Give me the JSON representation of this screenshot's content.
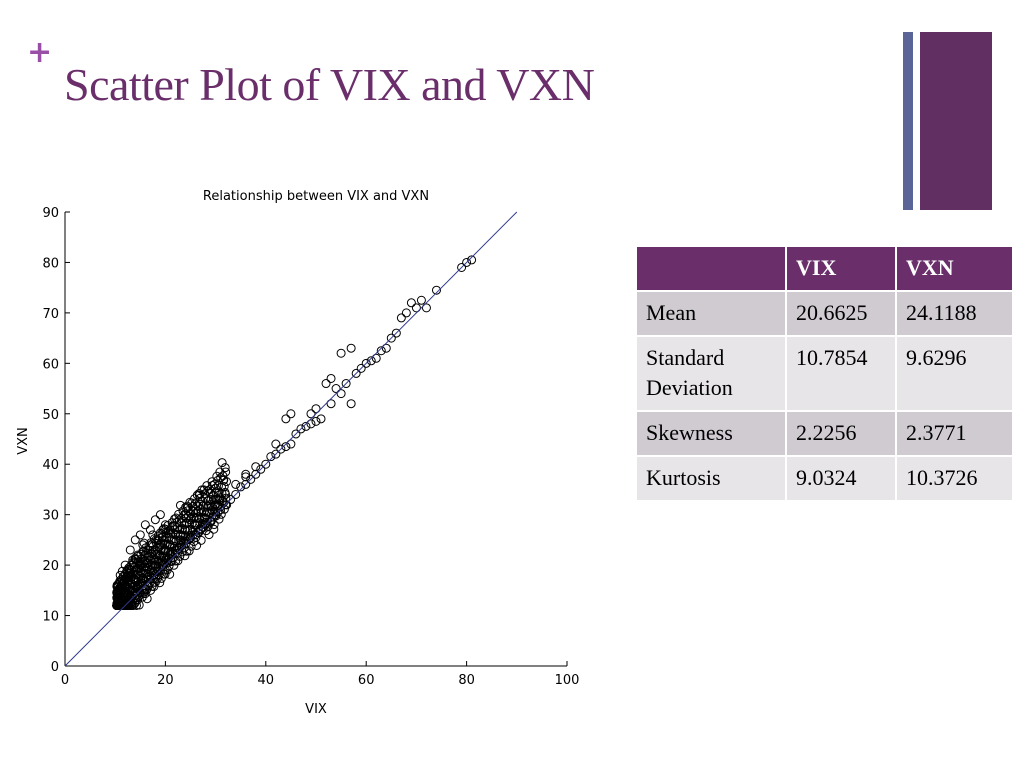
{
  "slide": {
    "bullet": "+",
    "title": "Scatter Plot of VIX and VXN",
    "accent_colors": {
      "title": "#6a2f6b",
      "plus": "#9a4fa6",
      "bar_thin": "#5b6497",
      "bar_thick": "#622f63"
    }
  },
  "stats_table": {
    "headers": [
      "",
      "VIX",
      "VXN"
    ],
    "rows": [
      [
        "Mean",
        "20.6625",
        "24.1188"
      ],
      [
        "Standard Deviation",
        "10.7854",
        "9.6296"
      ],
      [
        "Skewness",
        "2.2256",
        "2.3771"
      ],
      [
        "Kurtosis",
        "9.0324",
        "10.3726"
      ]
    ]
  },
  "chart_data": {
    "type": "scatter",
    "title": "Relationship between VIX and VXN",
    "xlabel": "VIX",
    "ylabel": "VXN",
    "xlim": [
      0,
      100
    ],
    "ylim": [
      0,
      90
    ],
    "xticks": [
      0,
      20,
      40,
      60,
      80,
      100
    ],
    "yticks": [
      0,
      10,
      20,
      30,
      40,
      50,
      60,
      70,
      80,
      90
    ],
    "marker": "open-circle",
    "grid": false,
    "fit_line": {
      "x": [
        0,
        90
      ],
      "y": [
        0,
        90
      ],
      "color": "#2f3a8f"
    },
    "points": [
      [
        10.5,
        14.5
      ],
      [
        11,
        15.5
      ],
      [
        11.5,
        17
      ],
      [
        12,
        16
      ],
      [
        12.5,
        19
      ],
      [
        13,
        18
      ],
      [
        13.5,
        21
      ],
      [
        14,
        17
      ],
      [
        14.5,
        22
      ],
      [
        15,
        20
      ],
      [
        15.5,
        24
      ],
      [
        16,
        19
      ],
      [
        16.5,
        23
      ],
      [
        17,
        21
      ],
      [
        17.5,
        26
      ],
      [
        18,
        20
      ],
      [
        18.5,
        25
      ],
      [
        19,
        22
      ],
      [
        19.5,
        27
      ],
      [
        20,
        23
      ],
      [
        11,
        18
      ],
      [
        12,
        20
      ],
      [
        13,
        23
      ],
      [
        14,
        25
      ],
      [
        15,
        26
      ],
      [
        16,
        28
      ],
      [
        17,
        27
      ],
      [
        18,
        29
      ],
      [
        19,
        30
      ],
      [
        20,
        28
      ],
      [
        11.5,
        13
      ],
      [
        12.5,
        14
      ],
      [
        13.5,
        15.5
      ],
      [
        14.5,
        16
      ],
      [
        15.5,
        17
      ],
      [
        16.5,
        17.5
      ],
      [
        17.5,
        18.5
      ],
      [
        18.5,
        19
      ],
      [
        19.5,
        20
      ],
      [
        20.5,
        21
      ],
      [
        21,
        24
      ],
      [
        22,
        26
      ],
      [
        23,
        25
      ],
      [
        24,
        27
      ],
      [
        25,
        29
      ],
      [
        26,
        28
      ],
      [
        27,
        31
      ],
      [
        28,
        30
      ],
      [
        29,
        32
      ],
      [
        30,
        33
      ],
      [
        21,
        22
      ],
      [
        22,
        23
      ],
      [
        23,
        24
      ],
      [
        24,
        25
      ],
      [
        25,
        25.5
      ],
      [
        26,
        26
      ],
      [
        27,
        27
      ],
      [
        28,
        28
      ],
      [
        29,
        28.5
      ],
      [
        30,
        30
      ],
      [
        31,
        31
      ],
      [
        32,
        32
      ],
      [
        33,
        33
      ],
      [
        34,
        34
      ],
      [
        35,
        35.5
      ],
      [
        36,
        36
      ],
      [
        37,
        37
      ],
      [
        38,
        38
      ],
      [
        39,
        39
      ],
      [
        40,
        40
      ],
      [
        41,
        41.5
      ],
      [
        42,
        42
      ],
      [
        43,
        43
      ],
      [
        44,
        43.5
      ],
      [
        45,
        44
      ],
      [
        46,
        46
      ],
      [
        47,
        47
      ],
      [
        48,
        47.5
      ],
      [
        49,
        48
      ],
      [
        50,
        48.5
      ],
      [
        30,
        32
      ],
      [
        32,
        34
      ],
      [
        34,
        36
      ],
      [
        36,
        37.5
      ],
      [
        38,
        39.5
      ],
      [
        44,
        49
      ],
      [
        45,
        50
      ],
      [
        50,
        51
      ],
      [
        51,
        49
      ],
      [
        52,
        56
      ],
      [
        53,
        57
      ],
      [
        54,
        55
      ],
      [
        55,
        54
      ],
      [
        56,
        56
      ],
      [
        57,
        52
      ],
      [
        58,
        58
      ],
      [
        59,
        59
      ],
      [
        60,
        60
      ],
      [
        61,
        60.5
      ],
      [
        62,
        61
      ],
      [
        63,
        62.5
      ],
      [
        64,
        63
      ],
      [
        65,
        65
      ],
      [
        66,
        66
      ],
      [
        67,
        69
      ],
      [
        68,
        70
      ],
      [
        69,
        72
      ],
      [
        70,
        71
      ],
      [
        71,
        72.5
      ],
      [
        72,
        71
      ],
      [
        74,
        74.5
      ],
      [
        79,
        79
      ],
      [
        80,
        80
      ],
      [
        81,
        80.5
      ],
      [
        55,
        62
      ],
      [
        57,
        63
      ],
      [
        53,
        52
      ],
      [
        49,
        50
      ],
      [
        42,
        44
      ],
      [
        36,
        38
      ]
    ]
  }
}
